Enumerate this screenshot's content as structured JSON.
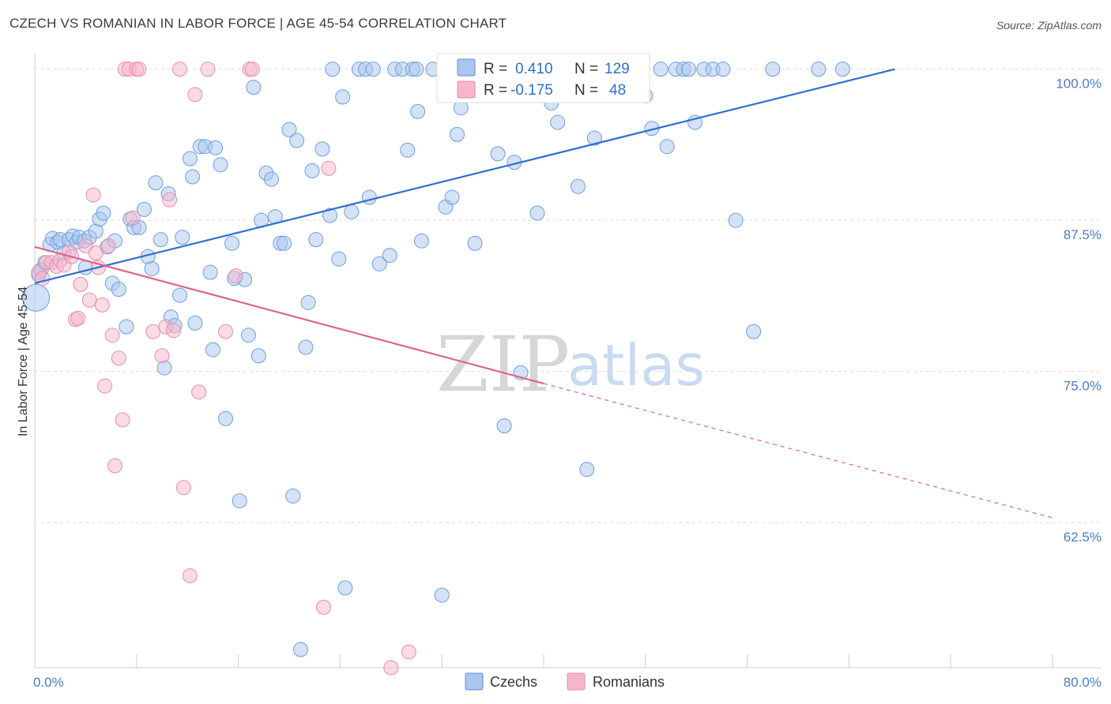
{
  "header": {
    "title": "CZECH VS ROMANIAN IN LABOR FORCE | AGE 45-54 CORRELATION CHART",
    "source": "Source: ZipAtlas.com"
  },
  "watermark": {
    "zip": "ZIP",
    "atlas": "atlas"
  },
  "legend": {
    "rows": [
      {
        "r_label": "R =",
        "r_value": "0.410",
        "n_label": "N =",
        "n_value": "129",
        "color": "#a9c6ee"
      },
      {
        "r_label": "R =",
        "r_value": "-0.175",
        "n_label": "N =",
        "n_value": "48",
        "color": "#f5b6ca"
      }
    ]
  },
  "bottom_legend": {
    "czechs": "Czechs",
    "romanians": "Romanians"
  },
  "chart_data": {
    "type": "scatter",
    "title": "CZECH VS ROMANIAN IN LABOR FORCE | AGE 45-54 CORRELATION CHART",
    "xlabel": "",
    "ylabel": "In Labor Force | Age 45-54",
    "xlim": [
      0,
      80
    ],
    "ylim": [
      50.5,
      100.5
    ],
    "x_tick_labels": [
      "0.0%",
      "80.0%"
    ],
    "y_ticks": [
      62.5,
      75.0,
      87.5,
      100.0
    ],
    "y_tick_labels": [
      "62.5%",
      "75.0%",
      "87.5%",
      "100.0%"
    ],
    "grid": true,
    "legend_position": "top-center",
    "colors": {
      "czechs": "#a9c6ee",
      "czechs_line": "#2f6fd0",
      "romanians": "#f5b6ca",
      "romanians_line": "#e0638e"
    },
    "series": [
      {
        "name": "Czechs",
        "r": 0.41,
        "n": 129,
        "trend": {
          "x0": 0,
          "y0": 82.3,
          "x1": 67.6,
          "y1": 100.0
        },
        "points": [
          [
            0.1,
            81.1
          ],
          [
            0.3,
            83.0
          ],
          [
            0.5,
            83.4
          ],
          [
            0.8,
            84.0
          ],
          [
            1.2,
            85.5
          ],
          [
            1.4,
            86.0
          ],
          [
            1.8,
            85.7
          ],
          [
            2.0,
            85.9
          ],
          [
            2.3,
            84.8
          ],
          [
            2.7,
            85.9
          ],
          [
            3.0,
            86.2
          ],
          [
            3.3,
            85.7
          ],
          [
            3.5,
            86.1
          ],
          [
            3.9,
            85.8
          ],
          [
            4.0,
            83.6
          ],
          [
            4.3,
            86.1
          ],
          [
            4.8,
            86.6
          ],
          [
            5.1,
            87.6
          ],
          [
            5.4,
            88.1
          ],
          [
            5.7,
            85.3
          ],
          [
            6.1,
            82.3
          ],
          [
            6.3,
            85.8
          ],
          [
            6.6,
            81.8
          ],
          [
            7.2,
            78.7
          ],
          [
            7.5,
            87.6
          ],
          [
            7.8,
            86.9
          ],
          [
            8.2,
            86.9
          ],
          [
            8.6,
            88.4
          ],
          [
            8.9,
            84.5
          ],
          [
            9.2,
            83.5
          ],
          [
            9.5,
            90.6
          ],
          [
            9.9,
            85.9
          ],
          [
            10.2,
            75.3
          ],
          [
            10.5,
            89.7
          ],
          [
            10.7,
            79.5
          ],
          [
            11.0,
            78.8
          ],
          [
            11.4,
            81.3
          ],
          [
            11.6,
            86.1
          ],
          [
            12.2,
            92.6
          ],
          [
            12.4,
            91.1
          ],
          [
            12.6,
            79.0
          ],
          [
            13.0,
            93.6
          ],
          [
            13.4,
            93.6
          ],
          [
            13.8,
            83.2
          ],
          [
            14.0,
            76.8
          ],
          [
            14.2,
            93.5
          ],
          [
            14.6,
            92.1
          ],
          [
            15.0,
            71.1
          ],
          [
            15.5,
            85.6
          ],
          [
            15.7,
            82.7
          ],
          [
            16.1,
            64.3
          ],
          [
            16.5,
            82.6
          ],
          [
            16.8,
            78.0
          ],
          [
            17.2,
            98.5
          ],
          [
            17.6,
            76.3
          ],
          [
            17.8,
            87.5
          ],
          [
            18.2,
            91.4
          ],
          [
            18.6,
            90.9
          ],
          [
            18.9,
            87.8
          ],
          [
            19.3,
            85.6
          ],
          [
            19.6,
            85.6
          ],
          [
            20.0,
            95.0
          ],
          [
            20.3,
            64.7
          ],
          [
            20.6,
            94.1
          ],
          [
            20.9,
            52.0
          ],
          [
            21.3,
            77.0
          ],
          [
            21.5,
            80.7
          ],
          [
            21.8,
            91.6
          ],
          [
            22.1,
            85.9
          ],
          [
            22.6,
            93.4
          ],
          [
            23.2,
            87.9
          ],
          [
            23.4,
            100.0
          ],
          [
            23.9,
            84.3
          ],
          [
            24.2,
            97.7
          ],
          [
            24.4,
            57.1
          ],
          [
            24.9,
            88.2
          ],
          [
            25.5,
            100.0
          ],
          [
            26.0,
            100.0
          ],
          [
            26.3,
            89.4
          ],
          [
            26.6,
            100.0
          ],
          [
            27.1,
            83.9
          ],
          [
            27.9,
            84.6
          ],
          [
            28.3,
            100.0
          ],
          [
            28.9,
            100.0
          ],
          [
            29.3,
            93.3
          ],
          [
            29.7,
            100.0
          ],
          [
            30.1,
            96.5
          ],
          [
            30.4,
            85.8
          ],
          [
            31.3,
            100.0
          ],
          [
            32.0,
            56.5
          ],
          [
            32.3,
            88.6
          ],
          [
            32.8,
            89.4
          ],
          [
            33.2,
            94.6
          ],
          [
            33.5,
            96.8
          ],
          [
            34.2,
            98.9
          ],
          [
            34.6,
            85.6
          ],
          [
            35.3,
            100.0
          ],
          [
            35.9,
            100.0
          ],
          [
            36.4,
            93.0
          ],
          [
            36.9,
            70.5
          ],
          [
            37.2,
            100.0
          ],
          [
            37.7,
            92.3
          ],
          [
            38.2,
            74.9
          ],
          [
            38.6,
            100.0
          ],
          [
            39.0,
            100.0
          ],
          [
            39.5,
            88.1
          ],
          [
            40.1,
            100.0
          ],
          [
            40.6,
            97.2
          ],
          [
            41.1,
            95.6
          ],
          [
            41.6,
            100.0
          ],
          [
            42.0,
            100.0
          ],
          [
            42.7,
            90.3
          ],
          [
            43.4,
            66.9
          ],
          [
            44.0,
            94.3
          ],
          [
            44.6,
            100.0
          ],
          [
            45.2,
            100.0
          ],
          [
            46.1,
            100.0
          ],
          [
            46.7,
            100.0
          ],
          [
            47.5,
            100.0
          ],
          [
            48.0,
            97.8
          ],
          [
            48.5,
            95.1
          ],
          [
            49.2,
            100.0
          ],
          [
            49.7,
            93.6
          ],
          [
            50.4,
            100.0
          ],
          [
            51.0,
            100.0
          ],
          [
            51.4,
            100.0
          ],
          [
            51.9,
            95.6
          ],
          [
            52.6,
            100.0
          ],
          [
            53.3,
            100.0
          ],
          [
            54.1,
            100.0
          ],
          [
            55.1,
            87.5
          ],
          [
            56.5,
            78.3
          ],
          [
            58.0,
            100.0
          ],
          [
            61.6,
            100.0
          ],
          [
            63.5,
            100.0
          ],
          [
            30.0,
            100.0
          ],
          [
            33.8,
            100.0
          ],
          [
            44.2,
            100.0
          ],
          [
            45.8,
            100.0
          ]
        ]
      },
      {
        "name": "Romanians",
        "r": -0.175,
        "n": 48,
        "trend": {
          "x0": 0,
          "y0": 85.3,
          "x1": 40.0,
          "y1": 74.0,
          "dash_x1": 80.0,
          "dash_y1": 62.9
        },
        "points": [
          [
            0.3,
            83.2
          ],
          [
            0.6,
            82.7
          ],
          [
            0.9,
            84.0
          ],
          [
            1.3,
            84.0
          ],
          [
            1.7,
            83.7
          ],
          [
            2.0,
            84.2
          ],
          [
            2.3,
            83.8
          ],
          [
            2.7,
            84.9
          ],
          [
            2.9,
            84.5
          ],
          [
            3.2,
            79.3
          ],
          [
            3.4,
            79.4
          ],
          [
            3.6,
            82.2
          ],
          [
            4.0,
            85.4
          ],
          [
            4.3,
            80.9
          ],
          [
            4.6,
            89.6
          ],
          [
            4.8,
            84.8
          ],
          [
            5.0,
            83.6
          ],
          [
            5.3,
            80.5
          ],
          [
            5.5,
            73.8
          ],
          [
            5.8,
            85.4
          ],
          [
            6.1,
            78.0
          ],
          [
            6.3,
            67.2
          ],
          [
            6.6,
            76.1
          ],
          [
            6.9,
            71.0
          ],
          [
            7.1,
            100.0
          ],
          [
            7.4,
            100.0
          ],
          [
            7.7,
            87.7
          ],
          [
            8.0,
            100.0
          ],
          [
            8.2,
            100.0
          ],
          [
            9.3,
            78.3
          ],
          [
            10.0,
            76.3
          ],
          [
            10.3,
            78.7
          ],
          [
            10.6,
            89.2
          ],
          [
            10.9,
            78.4
          ],
          [
            11.4,
            100.0
          ],
          [
            11.7,
            65.4
          ],
          [
            12.2,
            58.1
          ],
          [
            12.6,
            97.9
          ],
          [
            12.9,
            73.3
          ],
          [
            13.6,
            100.0
          ],
          [
            15.0,
            78.3
          ],
          [
            15.8,
            82.9
          ],
          [
            16.9,
            100.0
          ],
          [
            17.1,
            100.0
          ],
          [
            22.7,
            55.5
          ],
          [
            23.1,
            91.8
          ],
          [
            28.0,
            50.5
          ],
          [
            29.4,
            51.8
          ]
        ]
      }
    ]
  }
}
